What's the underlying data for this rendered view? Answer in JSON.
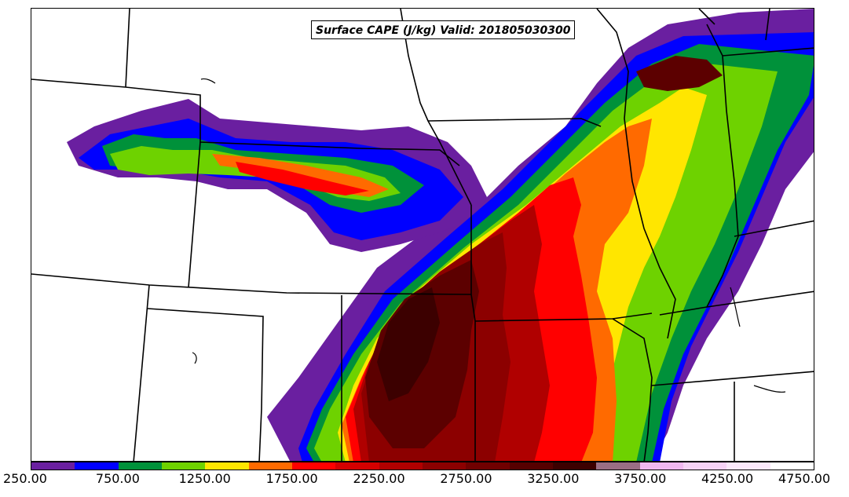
{
  "map": {
    "title": "Surface CAPE (J/kg) Valid: 201805030300",
    "field": "Surface CAPE",
    "units": "J/kg",
    "valid_time": "201805030300"
  },
  "colorbar": {
    "colors": [
      "#6a1fa0",
      "#0000ff",
      "#00913a",
      "#6ed200",
      "#ffe600",
      "#ff6a00",
      "#ff0000",
      "#d40000",
      "#b00000",
      "#8c0000",
      "#700000",
      "#560000",
      "#3c0000",
      "#9a6e84",
      "#f0b8f0",
      "#f6d2f6",
      "#fbe8fb",
      "#ffffff"
    ],
    "ticks": [
      "250.00",
      "750.00",
      "1250.00",
      "1750.00",
      "2250.00",
      "2750.00",
      "3250.00",
      "3750.00",
      "4250.00",
      "4750.00"
    ]
  }
}
